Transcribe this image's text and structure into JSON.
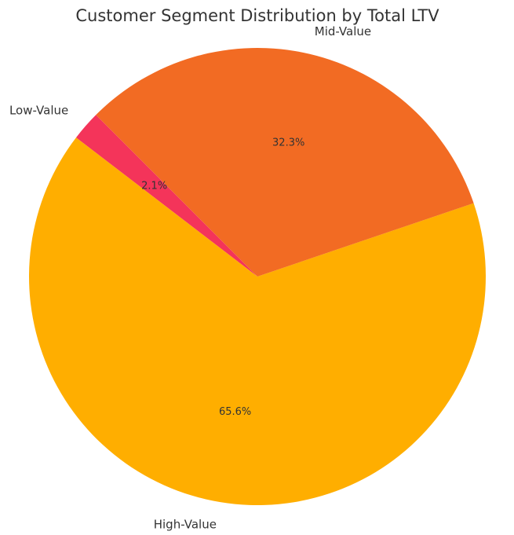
{
  "chart_data": {
    "type": "pie",
    "title": "Customer Segment Distribution by Total LTV",
    "start_angle_deg": 135,
    "direction": "counterclockwise",
    "slices": [
      {
        "label": "Low-Value",
        "value": 2.1,
        "pct_label": "2.1%",
        "color": "#F4345A"
      },
      {
        "label": "High-Value",
        "value": 65.6,
        "pct_label": "65.6%",
        "color": "#FFAE00"
      },
      {
        "label": "Mid-Value",
        "value": 32.3,
        "pct_label": "32.3%",
        "color": "#F26B23"
      }
    ]
  }
}
